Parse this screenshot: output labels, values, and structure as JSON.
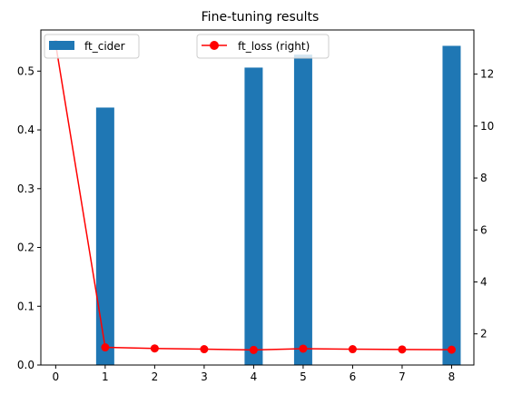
{
  "chart_data": {
    "type": "bar+line",
    "title": "Fine-tuning results",
    "x": [
      0,
      1,
      2,
      3,
      4,
      5,
      6,
      7,
      8
    ],
    "series": [
      {
        "name": "ft_cider",
        "kind": "bar",
        "axis": "left",
        "color": "#1f77b4",
        "points": [
          {
            "x": 1,
            "y": 0.438
          },
          {
            "x": 4,
            "y": 0.506
          },
          {
            "x": 5,
            "y": 0.528
          },
          {
            "x": 8,
            "y": 0.543
          }
        ]
      },
      {
        "name": "ft_loss (right)",
        "kind": "line",
        "axis": "right",
        "color": "#ff0000",
        "values": [
          13.15,
          1.48,
          1.44,
          1.41,
          1.38,
          1.43,
          1.41,
          1.4,
          1.39
        ]
      }
    ],
    "ylim_left": [
      0,
      0.57
    ],
    "ylim_right": [
      0.8,
      13.7
    ],
    "xlim": [
      -0.3,
      8.45
    ],
    "x_ticks": [
      0,
      1,
      2,
      3,
      4,
      5,
      6,
      7,
      8
    ],
    "y_left_ticks": [
      0.0,
      0.1,
      0.2,
      0.3,
      0.4,
      0.5
    ],
    "y_left_tick_labels": [
      "0.0",
      "0.1",
      "0.2",
      "0.3",
      "0.4",
      "0.5"
    ],
    "y_right_ticks": [
      2,
      4,
      6,
      8,
      10,
      12
    ],
    "grid": false,
    "legend_placement": [
      "upper-left",
      "upper-center"
    ]
  }
}
